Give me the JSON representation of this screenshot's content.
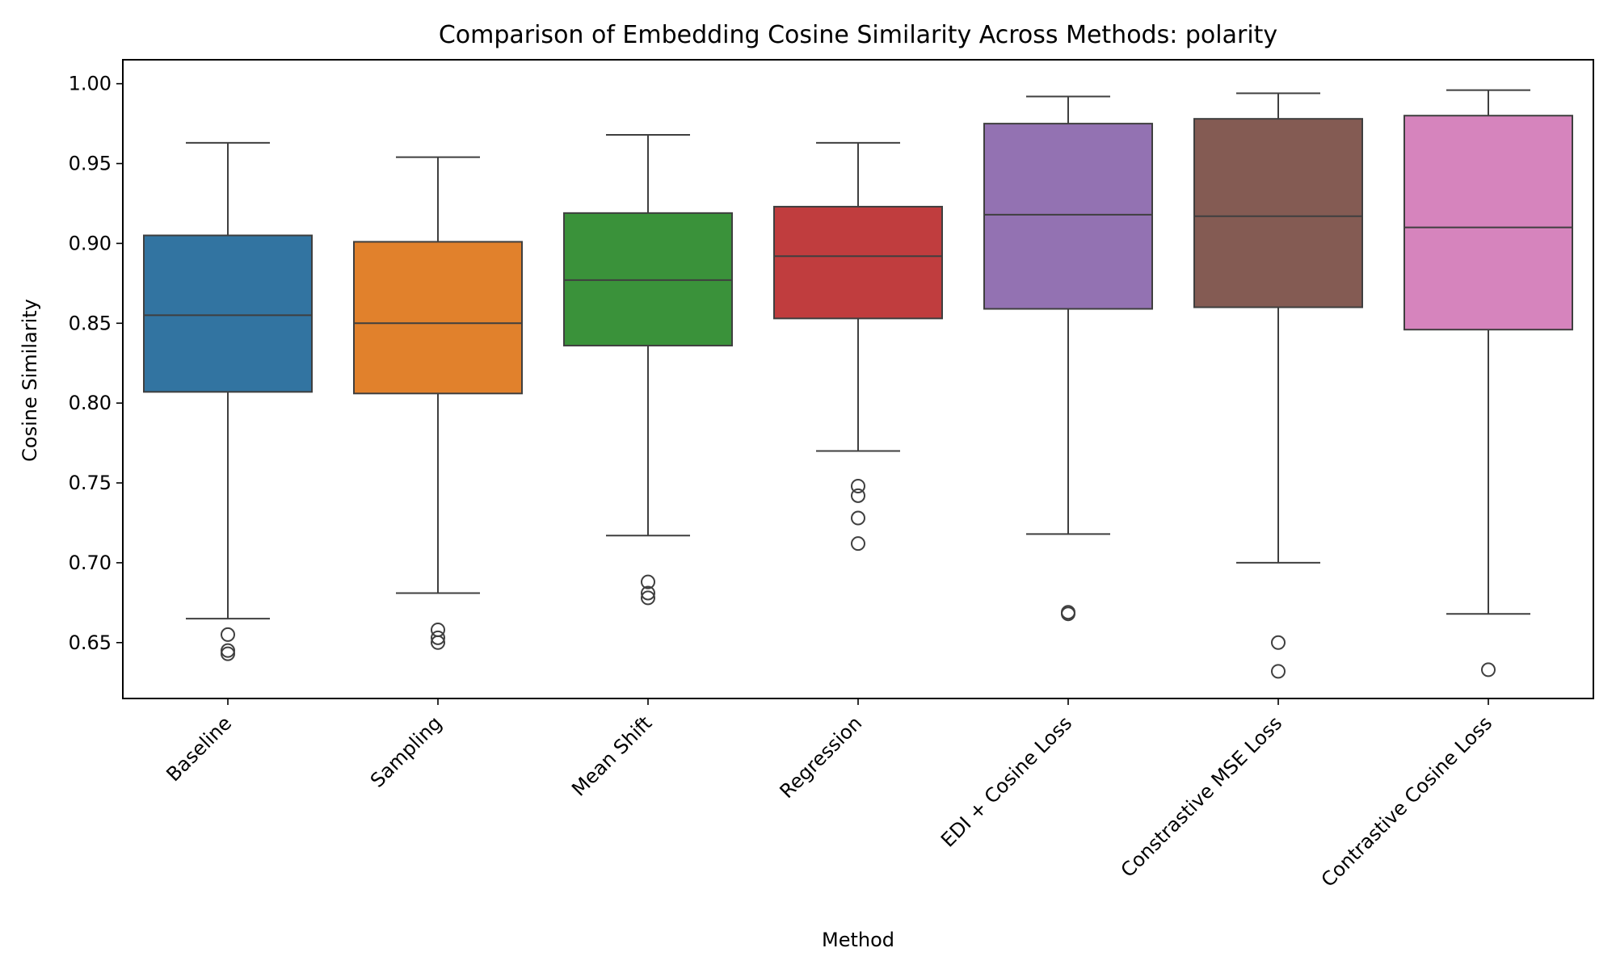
{
  "chart_data": {
    "type": "box",
    "title": "Comparison of Embedding Cosine Similarity Across Methods: polarity",
    "xlabel": "Method",
    "ylabel": "Cosine Similarity",
    "ylim": [
      0.615,
      1.015
    ],
    "yticks": [
      "0.65",
      "0.70",
      "0.75",
      "0.80",
      "0.85",
      "0.90",
      "0.95",
      "1.00"
    ],
    "grid": false,
    "categories": [
      "Baseline",
      "Sampling",
      "Mean Shift",
      "Regression",
      "EDI + Cosine Loss",
      "Constrastive MSE Loss",
      "Contrastive Cosine Loss"
    ],
    "colors": [
      "#3274a1",
      "#e1812c",
      "#3a923a",
      "#c03d3e",
      "#9372b2",
      "#845b53",
      "#d684bd"
    ],
    "boxes": [
      {
        "whislo": 0.665,
        "q1": 0.807,
        "med": 0.855,
        "q3": 0.905,
        "whishi": 0.963,
        "fliers": [
          0.655,
          0.645,
          0.643
        ]
      },
      {
        "whislo": 0.681,
        "q1": 0.806,
        "med": 0.85,
        "q3": 0.901,
        "whishi": 0.954,
        "fliers": [
          0.658,
          0.653,
          0.65
        ]
      },
      {
        "whislo": 0.717,
        "q1": 0.836,
        "med": 0.877,
        "q3": 0.919,
        "whishi": 0.968,
        "fliers": [
          0.688,
          0.681,
          0.678
        ]
      },
      {
        "whislo": 0.77,
        "q1": 0.853,
        "med": 0.892,
        "q3": 0.923,
        "whishi": 0.963,
        "fliers": [
          0.748,
          0.742,
          0.728,
          0.712
        ]
      },
      {
        "whislo": 0.718,
        "q1": 0.859,
        "med": 0.918,
        "q3": 0.975,
        "whishi": 0.992,
        "fliers": [
          0.669,
          0.668
        ]
      },
      {
        "whislo": 0.7,
        "q1": 0.86,
        "med": 0.917,
        "q3": 0.978,
        "whishi": 0.994,
        "fliers": [
          0.65,
          0.632
        ]
      },
      {
        "whislo": 0.668,
        "q1": 0.846,
        "med": 0.91,
        "q3": 0.98,
        "whishi": 0.996,
        "fliers": [
          0.633
        ]
      }
    ]
  }
}
